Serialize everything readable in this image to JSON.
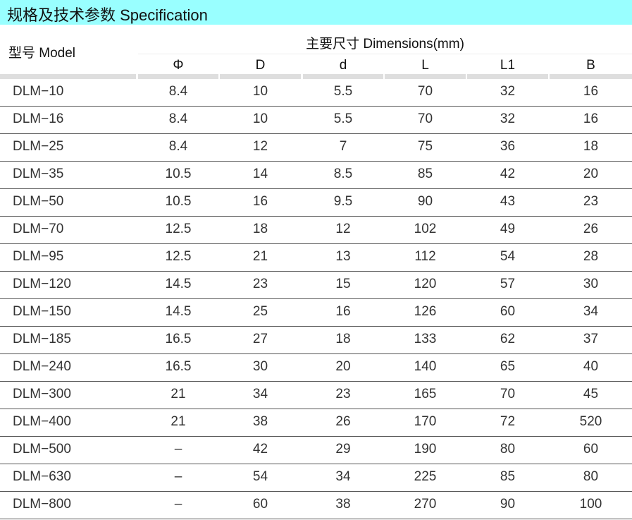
{
  "title": "规格及技术参数  Specification",
  "header": {
    "model": "型号 Model",
    "dimensions": "主要尺寸  Dimensions(mm)",
    "columns": [
      "Φ",
      "D",
      "d",
      "L",
      "L1",
      "B"
    ]
  },
  "colors": {
    "title_band": "#99ffff",
    "separator": "#dedede",
    "row_line": "#555555"
  },
  "rows": [
    [
      "DLM−10",
      "8.4",
      "10",
      "5.5",
      "70",
      "32",
      "16"
    ],
    [
      "DLM−16",
      "8.4",
      "10",
      "5.5",
      "70",
      "32",
      "16"
    ],
    [
      "DLM−25",
      "8.4",
      "12",
      "7",
      "75",
      "36",
      "18"
    ],
    [
      "DLM−35",
      "10.5",
      "14",
      "8.5",
      "85",
      "42",
      "20"
    ],
    [
      "DLM−50",
      "10.5",
      "16",
      "9.5",
      "90",
      "43",
      "23"
    ],
    [
      "DLM−70",
      "12.5",
      "18",
      "12",
      "102",
      "49",
      "26"
    ],
    [
      "DLM−95",
      "12.5",
      "21",
      "13",
      "112",
      "54",
      "28"
    ],
    [
      "DLM−120",
      "14.5",
      "23",
      "15",
      "120",
      "57",
      "30"
    ],
    [
      "DLM−150",
      "14.5",
      "25",
      "16",
      "126",
      "60",
      "34"
    ],
    [
      "DLM−185",
      "16.5",
      "27",
      "18",
      "133",
      "62",
      "37"
    ],
    [
      "DLM−240",
      "16.5",
      "30",
      "20",
      "140",
      "65",
      "40"
    ],
    [
      "DLM−300",
      "21",
      "34",
      "23",
      "165",
      "70",
      "45"
    ],
    [
      "DLM−400",
      "21",
      "38",
      "26",
      "170",
      "72",
      "520"
    ],
    [
      "DLM−500",
      "–",
      "42",
      "29",
      "190",
      "80",
      "60"
    ],
    [
      "DLM−630",
      "–",
      "54",
      "34",
      "225",
      "85",
      "80"
    ],
    [
      "DLM−800",
      "–",
      "60",
      "38",
      "270",
      "90",
      "100"
    ]
  ]
}
